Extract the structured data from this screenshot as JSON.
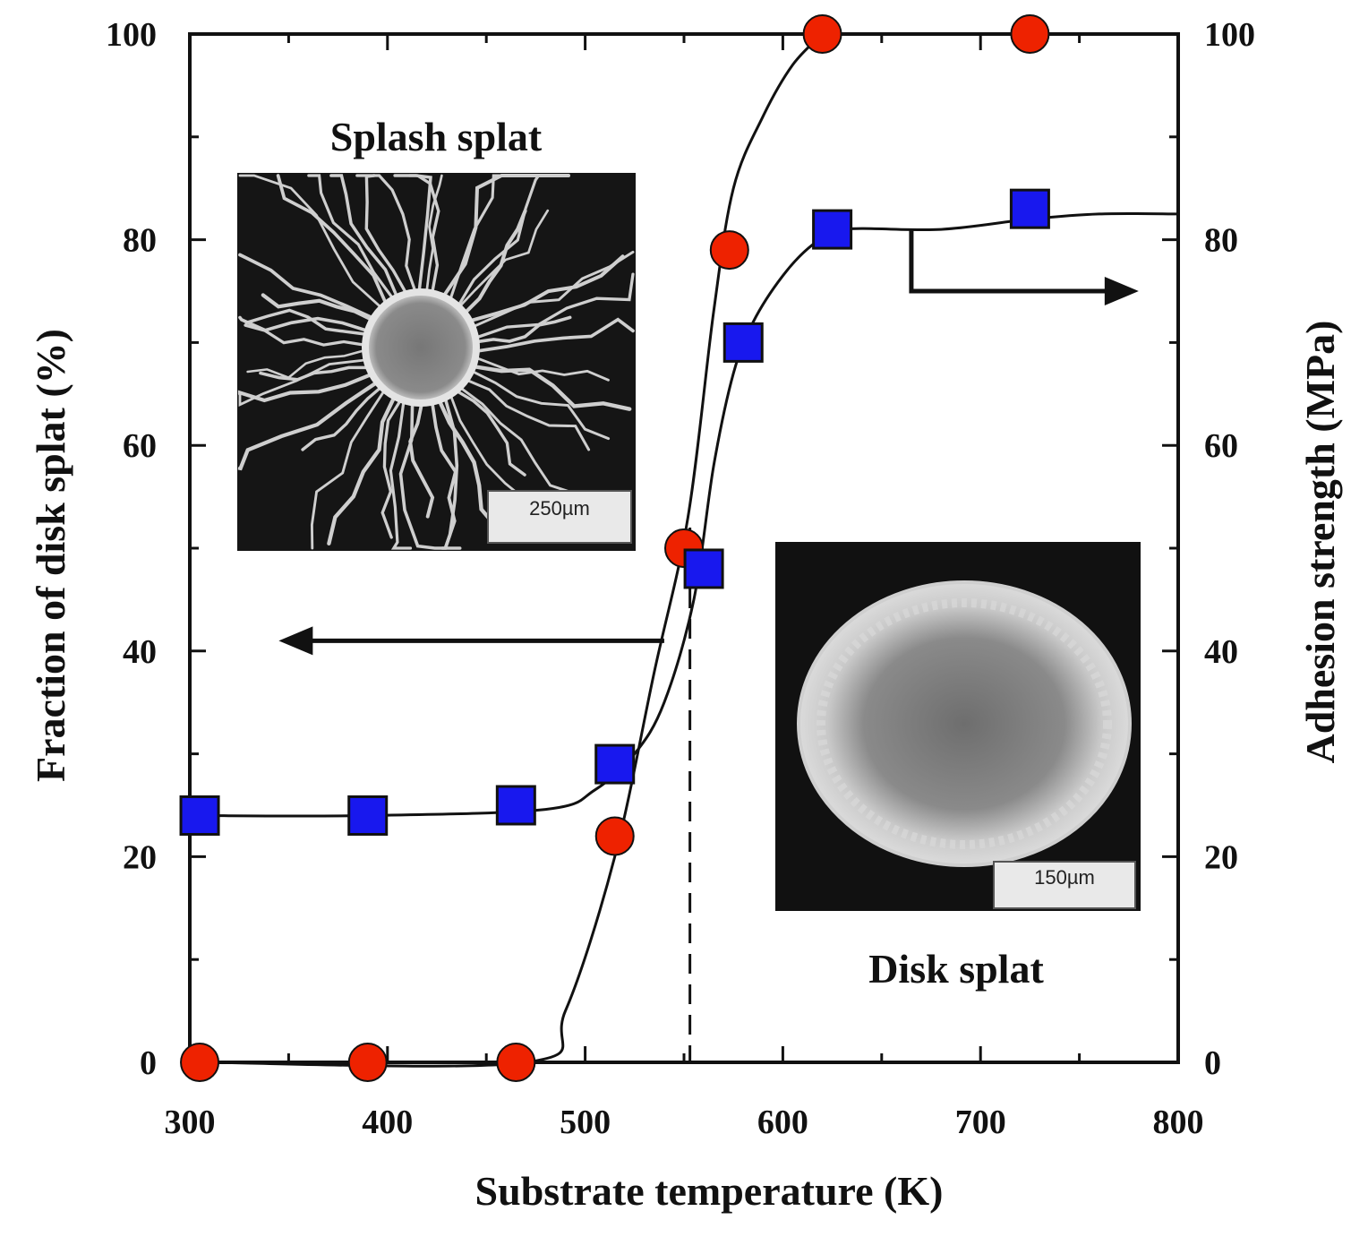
{
  "chart_data": {
    "type": "scatter",
    "title": "",
    "xlabel": "Substrate temperature (K)",
    "ylabel_left": "Fraction of disk splat (%)",
    "ylabel_right": "Adhesion strength (MPa)",
    "xlim": [
      300,
      800
    ],
    "ylim_left": [
      0,
      100
    ],
    "ylim_right": [
      0,
      100
    ],
    "x_ticks": [
      "300",
      "400",
      "500",
      "600",
      "700",
      "800"
    ],
    "y_ticks_left": [
      "0",
      "20",
      "40",
      "60",
      "80",
      "100"
    ],
    "y_ticks_right": [
      "0",
      "20",
      "40",
      "60",
      "80",
      "100"
    ],
    "grid": false,
    "series": [
      {
        "axis": "left",
        "marker": "circle",
        "color": "#ee2200",
        "points": [
          {
            "x": 305,
            "y": 0
          },
          {
            "x": 390,
            "y": 0
          },
          {
            "x": 465,
            "y": 0
          },
          {
            "x": 515,
            "y": 22
          },
          {
            "x": 550,
            "y": 50
          },
          {
            "x": 573,
            "y": 79
          },
          {
            "x": 620,
            "y": 100
          },
          {
            "x": 725,
            "y": 100
          }
        ],
        "curve": [
          [
            305,
            0
          ],
          [
            470,
            0
          ],
          [
            490,
            5
          ],
          [
            515,
            20
          ],
          [
            535,
            38
          ],
          [
            552,
            53
          ],
          [
            565,
            73
          ],
          [
            575,
            85
          ],
          [
            590,
            92
          ],
          [
            605,
            97
          ],
          [
            620,
            100
          ]
        ]
      },
      {
        "axis": "right",
        "marker": "square",
        "color": "#1818ee",
        "points": [
          {
            "x": 305,
            "y": 24
          },
          {
            "x": 390,
            "y": 24
          },
          {
            "x": 465,
            "y": 25
          },
          {
            "x": 515,
            "y": 29
          },
          {
            "x": 560,
            "y": 48
          },
          {
            "x": 580,
            "y": 70
          },
          {
            "x": 625,
            "y": 81
          },
          {
            "x": 725,
            "y": 83
          }
        ],
        "curve": [
          [
            300,
            24
          ],
          [
            390,
            24
          ],
          [
            480,
            24.6
          ],
          [
            505,
            26.5
          ],
          [
            525,
            30
          ],
          [
            540,
            35
          ],
          [
            555,
            45
          ],
          [
            565,
            58
          ],
          [
            575,
            67
          ],
          [
            585,
            72
          ],
          [
            600,
            76.5
          ],
          [
            615,
            79.5
          ],
          [
            630,
            81
          ],
          [
            680,
            81
          ],
          [
            725,
            82
          ],
          [
            760,
            82.5
          ],
          [
            800,
            82.5
          ]
        ]
      }
    ],
    "annotations": {
      "dashed_line_x": 553,
      "left_arrow": {
        "x_from": 540,
        "x_to": 345,
        "y": 41
      },
      "right_arrow": {
        "x_from": 665,
        "y_from": 81,
        "y_to": 75,
        "x_to": 780
      }
    }
  },
  "insets": {
    "splash": {
      "label": "Splash splat",
      "scale": "250µm"
    },
    "disk": {
      "label": "Disk splat",
      "scale": "150µm"
    }
  },
  "colors": {
    "background": "#ffffff",
    "axis": "#111111",
    "red_marker": "#ee2200",
    "blue_marker": "#1818ee"
  }
}
